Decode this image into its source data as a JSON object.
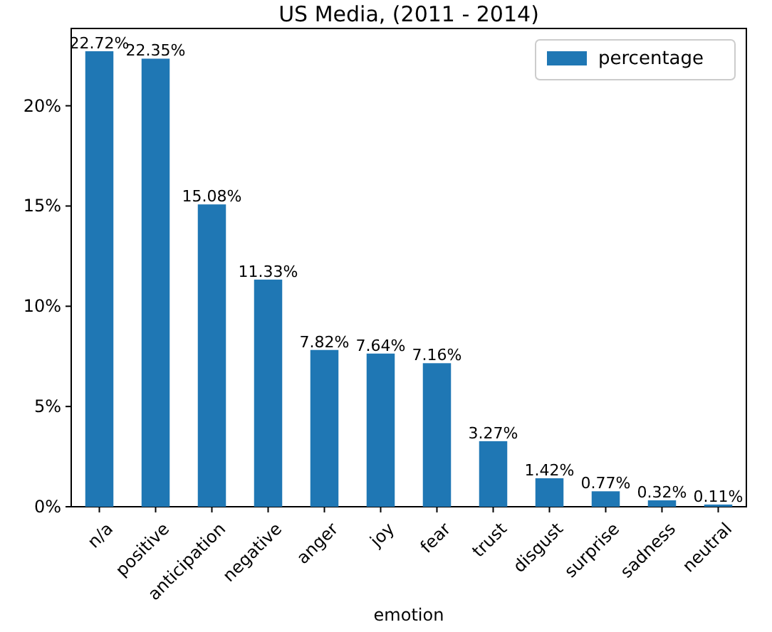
{
  "chart_data": {
    "type": "bar",
    "title": "US Media, (2011 - 2014)",
    "xlabel": "emotion",
    "categories": [
      "n/a",
      "positive",
      "anticipation",
      "negative",
      "anger",
      "joy",
      "fear",
      "trust",
      "disgust",
      "surprise",
      "sadness",
      "neutral"
    ],
    "series": [
      {
        "name": "percentage",
        "color": "#1f77b4",
        "values": [
          22.72,
          22.35,
          15.08,
          11.33,
          7.82,
          7.64,
          7.16,
          3.27,
          1.42,
          0.77,
          0.32,
          0.11
        ],
        "value_labels": [
          "22.72%",
          "22.35%",
          "15.08%",
          "11.33%",
          "7.82%",
          "7.64%",
          "7.16%",
          "3.27%",
          "1.42%",
          "0.77%",
          "0.32%",
          "0.11%"
        ]
      }
    ],
    "ylim": [
      0,
      23.856
    ],
    "yticks": [
      {
        "value": 0,
        "label": "0%"
      },
      {
        "value": 5,
        "label": "5%"
      },
      {
        "value": 10,
        "label": "10%"
      },
      {
        "value": 15,
        "label": "15%"
      },
      {
        "value": 20,
        "label": "20%"
      }
    ],
    "legend": "top right",
    "grid": false
  }
}
